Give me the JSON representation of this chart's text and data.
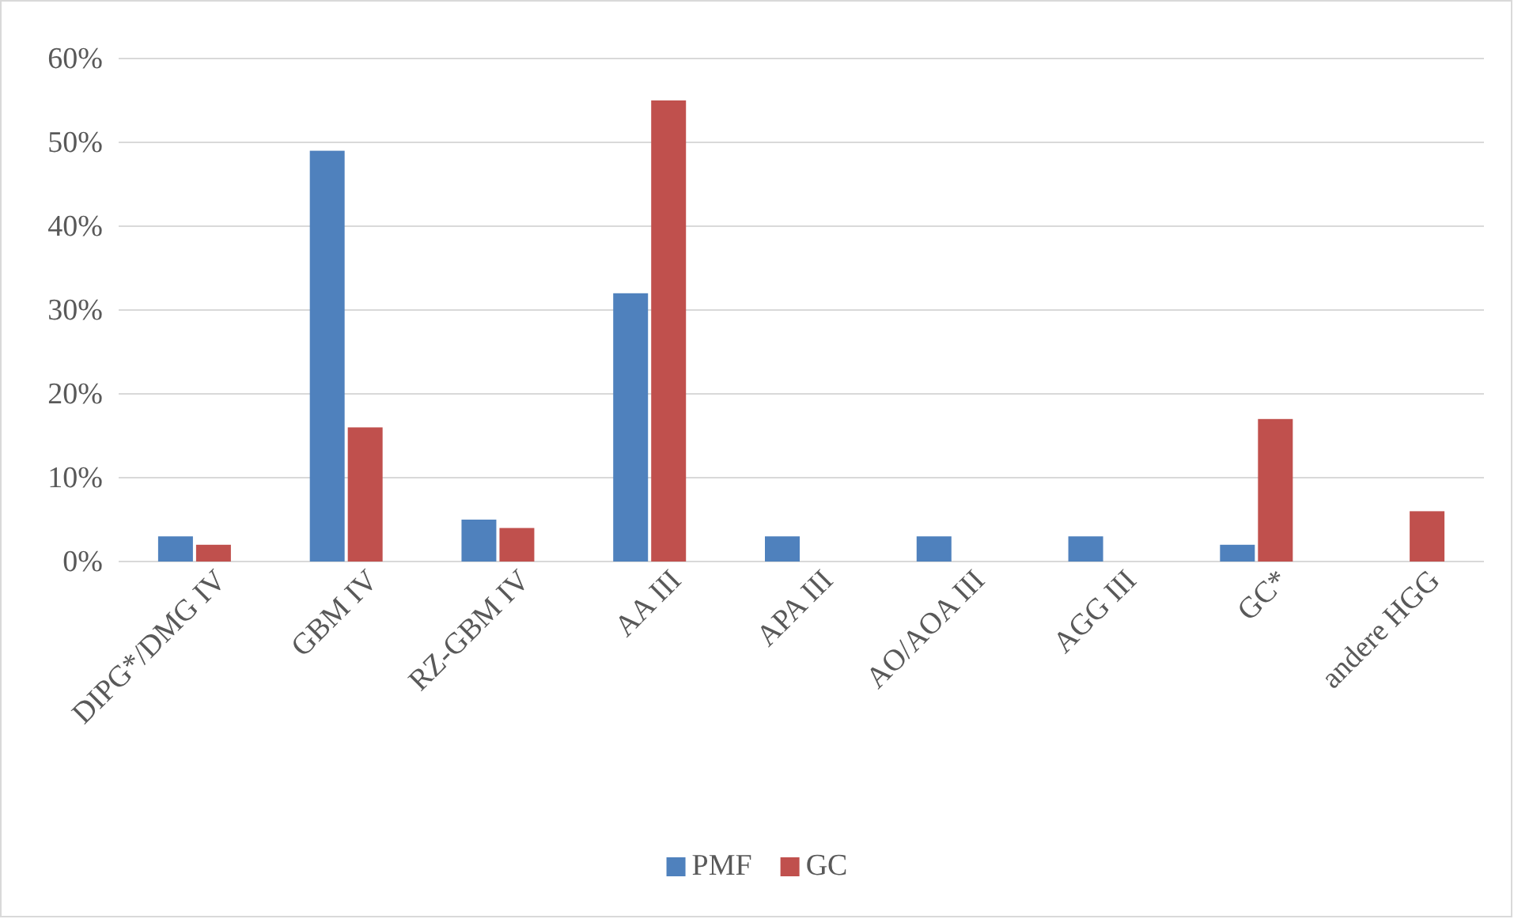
{
  "chart_data": {
    "type": "bar",
    "categories": [
      "DIPG*/DMG IV",
      "GBM IV",
      "RZ-GBM IV",
      "AA III",
      "APA III",
      "AO/AOA III",
      "AGG III",
      "GC*",
      "andere HGG"
    ],
    "series": [
      {
        "name": "PMF",
        "color": "#4f81bd",
        "values": [
          3,
          49,
          5,
          32,
          3,
          3,
          3,
          2,
          0
        ]
      },
      {
        "name": "GC",
        "color": "#c0504d",
        "values": [
          2,
          16,
          4,
          55,
          0,
          0,
          0,
          17,
          6
        ]
      }
    ],
    "ylim": [
      0,
      60
    ],
    "yticks": [
      {
        "value": 0,
        "label": "0%"
      },
      {
        "value": 10,
        "label": "10%"
      },
      {
        "value": 20,
        "label": "20%"
      },
      {
        "value": 30,
        "label": "30%"
      },
      {
        "value": 40,
        "label": "40%"
      },
      {
        "value": 50,
        "label": "50%"
      },
      {
        "value": 60,
        "label": "60%"
      }
    ],
    "grid": "y",
    "legend": "bottom"
  }
}
